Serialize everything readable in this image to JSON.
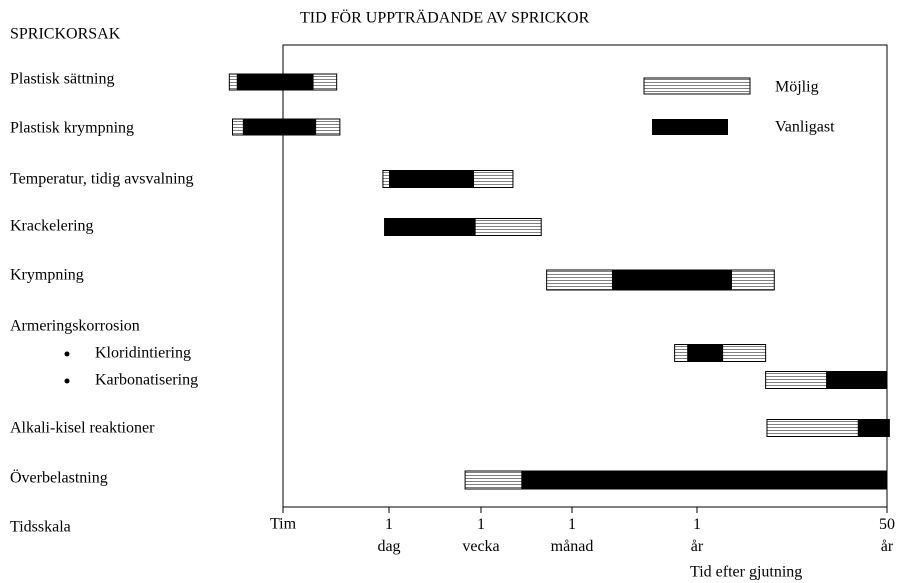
{
  "chart_data": {
    "type": "gantt",
    "title": "TID FÖR UPPTRÄDANDE AV SPRICKOR",
    "category_header": "SPRICKORSAK",
    "categories": [
      "Plastisk sättning",
      "Plastisk krympning",
      "Temperatur, tidig avsvalning",
      "Krackelering",
      "Krympning",
      "Armeringskorrosion",
      "Kloridintiering",
      "Karbonatisering",
      "Alkali-kisel reaktioner",
      "Överbelastning"
    ],
    "series": [
      {
        "name": "Möjlig",
        "color": "#808080",
        "values": [
          [
            0.2,
            5
          ],
          [
            0.22,
            5.5
          ],
          [
            20,
            280
          ],
          [
            21,
            440
          ],
          [
            480,
            43000
          ],
          null,
          [
            5600,
            36000
          ],
          [
            36000,
            438000
          ],
          [
            37000,
            460000
          ],
          [
            120,
            438000
          ]
        ]
      },
      {
        "name": "Vanligast",
        "color": "#000000",
        "values": [
          [
            0.25,
            2.5
          ],
          [
            0.3,
            2.7
          ],
          [
            24,
            145
          ],
          [
            21,
            150
          ],
          [
            1600,
            18000
          ],
          null,
          [
            7200,
            15000
          ],
          [
            125000,
            438000
          ],
          [
            240000,
            460000
          ],
          [
            320,
            438000
          ]
        ]
      }
    ],
    "xscale": "log",
    "xlim": [
      1,
      438000
    ],
    "xticks": [
      {
        "value": 1,
        "label": "Tim"
      },
      {
        "value": 24,
        "label": "1 dag"
      },
      {
        "value": 168,
        "label": "1 vecka"
      },
      {
        "value": 720,
        "label": "1 månad"
      },
      {
        "value": 8760,
        "label": "1 år"
      },
      {
        "value": 438000,
        "label": "50 år"
      }
    ],
    "axis_label": "Tidsskala",
    "xlabel": "Tid efter gjutning"
  }
}
